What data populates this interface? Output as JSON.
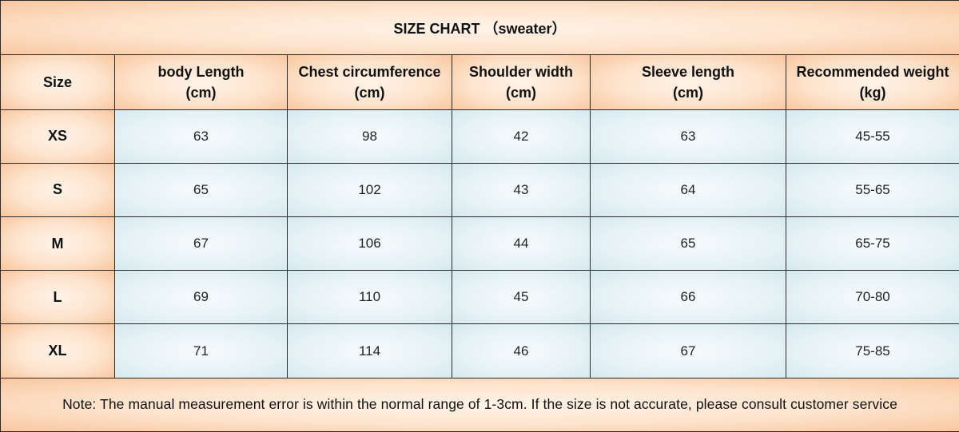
{
  "title": "SIZE CHART （sweater）",
  "columns": [
    {
      "line1": "Size",
      "line2": ""
    },
    {
      "line1": "body Length",
      "line2": "(cm)"
    },
    {
      "line1": "Chest circumference",
      "line2": "(cm)"
    },
    {
      "line1": "Shoulder width",
      "line2": "(cm)"
    },
    {
      "line1": "Sleeve length",
      "line2": "(cm)"
    },
    {
      "line1": "Recommended weight",
      "line2": "(kg)"
    }
  ],
  "rows": [
    {
      "size": "XS",
      "body_length": "63",
      "chest": "98",
      "shoulder": "42",
      "sleeve": "63",
      "weight": "45-55"
    },
    {
      "size": "S",
      "body_length": "65",
      "chest": "102",
      "shoulder": "43",
      "sleeve": "64",
      "weight": "55-65"
    },
    {
      "size": "M",
      "body_length": "67",
      "chest": "106",
      "shoulder": "44",
      "sleeve": "65",
      "weight": "65-75"
    },
    {
      "size": "L",
      "body_length": "69",
      "chest": "110",
      "shoulder": "45",
      "sleeve": "66",
      "weight": "70-80"
    },
    {
      "size": "XL",
      "body_length": "71",
      "chest": "114",
      "shoulder": "46",
      "sleeve": "67",
      "weight": "75-85"
    }
  ],
  "note": "Note: The manual measurement error is within the normal range of 1-3cm. If the size is not accurate, please consult customer service",
  "colors": {
    "header_fill": "#fde3cc",
    "body_fill": "#e6f2f6",
    "border": "#2b2b2b"
  }
}
